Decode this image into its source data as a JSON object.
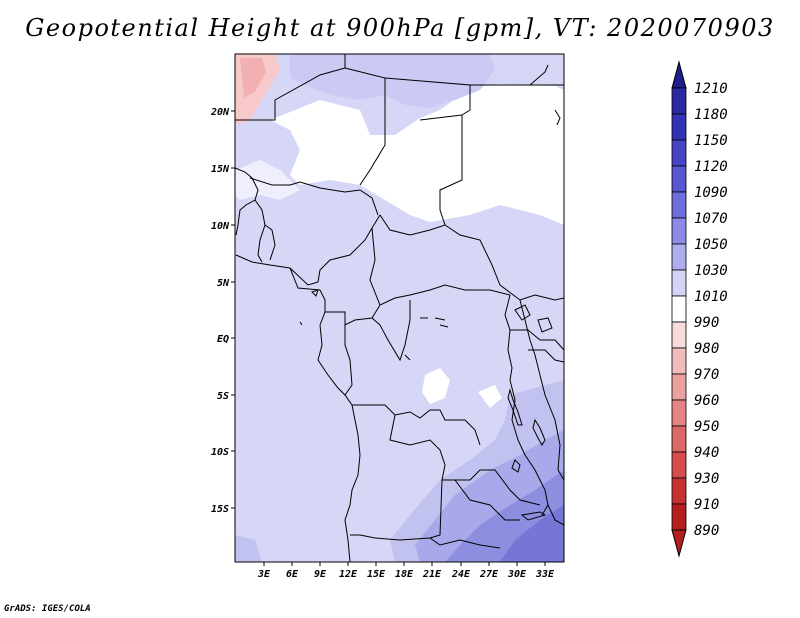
{
  "title": "Geopotential Height at 900hPa [gpm], VT: 2020070903",
  "credit": "GrADS: IGES/COLA",
  "map": {
    "lat_labels": [
      "20N",
      "15N",
      "10N",
      "5N",
      "EQ",
      "5S",
      "10S",
      "15S"
    ],
    "lon_labels": [
      "3E",
      "6E",
      "9E",
      "12E",
      "15E",
      "18E",
      "21E",
      "24E",
      "27E",
      "30E",
      "33E"
    ]
  },
  "colorbar": {
    "levels": [
      "1210",
      "1180",
      "1150",
      "1120",
      "1090",
      "1070",
      "1050",
      "1030",
      "1010",
      "990",
      "980",
      "970",
      "960",
      "950",
      "940",
      "930",
      "910",
      "890"
    ],
    "colors": [
      "#1e1e8c",
      "#2828a0",
      "#3232b4",
      "#4444c4",
      "#5858d0",
      "#6e6edc",
      "#8c8ce6",
      "#aeaef0",
      "#d4d4f8",
      "#ffffff",
      "#f8dcdc",
      "#f2bcbc",
      "#eca0a0",
      "#e48484",
      "#dc6868",
      "#d44c4c",
      "#c63232",
      "#b41e1e"
    ]
  }
}
